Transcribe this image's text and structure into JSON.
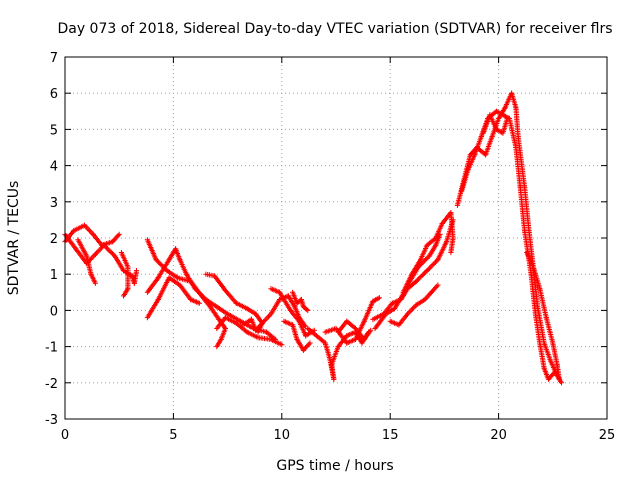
{
  "chart_data": {
    "type": "scatter",
    "title": "Day 073 of 2018, Sidereal Day-to-day VTEC variation (SDTVAR) for receiver flrs",
    "xlabel": "GPS time / hours",
    "ylabel": "SDTVAR / TECUs",
    "xlim": [
      0,
      25
    ],
    "ylim": [
      -3,
      7
    ],
    "xticks": [
      0,
      5,
      10,
      15,
      20,
      25
    ],
    "yticks": [
      -3,
      -2,
      -1,
      0,
      1,
      2,
      3,
      4,
      5,
      6,
      7
    ],
    "grid": true,
    "marker": "+",
    "series": [
      {
        "name": "SDTVAR",
        "color": "#ff0000",
        "trace_bands": [
          [
            [
              0.0,
              1.9
            ],
            [
              0.4,
              2.2
            ],
            [
              0.9,
              2.35
            ],
            [
              1.3,
              2.1
            ],
            [
              1.7,
              1.8
            ],
            [
              2.2,
              1.9
            ],
            [
              2.5,
              2.1
            ]
          ],
          [
            [
              0.0,
              2.1
            ],
            [
              0.5,
              1.7
            ],
            [
              1.0,
              1.3
            ],
            [
              1.4,
              1.55
            ],
            [
              1.8,
              1.8
            ],
            [
              2.3,
              1.5
            ],
            [
              2.7,
              1.1
            ],
            [
              3.1,
              0.95
            ],
            [
              3.2,
              0.75
            ],
            [
              3.3,
              1.1
            ]
          ],
          [
            [
              0.6,
              1.95
            ],
            [
              1.0,
              1.5
            ],
            [
              1.2,
              1.0
            ],
            [
              1.4,
              0.75
            ]
          ],
          [
            [
              2.6,
              1.6
            ],
            [
              2.9,
              1.2
            ],
            [
              2.9,
              0.6
            ],
            [
              2.7,
              0.4
            ]
          ],
          [
            [
              3.8,
              1.95
            ],
            [
              4.2,
              1.4
            ],
            [
              4.7,
              1.1
            ],
            [
              5.2,
              0.9
            ],
            [
              5.8,
              0.8
            ],
            [
              6.3,
              0.4
            ],
            [
              6.7,
              0.1
            ],
            [
              7.1,
              -0.25
            ],
            [
              7.4,
              -0.5
            ],
            [
              7.2,
              -0.8
            ],
            [
              7.0,
              -1.0
            ]
          ],
          [
            [
              3.8,
              0.5
            ],
            [
              4.3,
              0.9
            ],
            [
              4.8,
              1.4
            ],
            [
              5.1,
              1.7
            ],
            [
              5.3,
              1.4
            ],
            [
              5.6,
              1.0
            ],
            [
              6.0,
              0.6
            ],
            [
              6.5,
              0.3
            ],
            [
              7.0,
              0.1
            ],
            [
              7.5,
              -0.1
            ],
            [
              8.1,
              -0.3
            ],
            [
              8.7,
              -0.5
            ],
            [
              9.3,
              -0.6
            ],
            [
              9.7,
              -0.8
            ]
          ],
          [
            [
              3.8,
              -0.2
            ],
            [
              4.3,
              0.3
            ],
            [
              4.8,
              0.9
            ],
            [
              5.3,
              0.7
            ],
            [
              5.8,
              0.3
            ],
            [
              6.2,
              0.2
            ]
          ],
          [
            [
              6.5,
              1.0
            ],
            [
              6.9,
              0.95
            ],
            [
              7.4,
              0.55
            ],
            [
              7.9,
              0.2
            ],
            [
              8.4,
              0.05
            ],
            [
              8.8,
              -0.1
            ],
            [
              9.1,
              -0.35
            ],
            [
              8.9,
              -0.6
            ]
          ],
          [
            [
              7.0,
              -0.5
            ],
            [
              7.4,
              -0.2
            ],
            [
              7.9,
              -0.35
            ],
            [
              8.4,
              -0.6
            ],
            [
              8.9,
              -0.75
            ],
            [
              9.5,
              -0.8
            ],
            [
              10.0,
              -0.95
            ]
          ],
          [
            [
              8.2,
              -0.4
            ],
            [
              8.6,
              -0.25
            ],
            [
              8.8,
              -0.55
            ],
            [
              9.1,
              -0.35
            ],
            [
              9.5,
              -0.1
            ],
            [
              9.9,
              0.3
            ],
            [
              10.3,
              0.4
            ],
            [
              10.6,
              0.1
            ],
            [
              10.8,
              -0.2
            ],
            [
              11.1,
              -0.45
            ]
          ],
          [
            [
              9.5,
              0.6
            ],
            [
              9.9,
              0.5
            ],
            [
              10.4,
              0.0
            ],
            [
              10.8,
              -0.3
            ],
            [
              11.1,
              -0.7
            ],
            [
              11.5,
              -0.55
            ]
          ],
          [
            [
              10.1,
              -0.3
            ],
            [
              10.5,
              -0.4
            ],
            [
              10.7,
              -0.8
            ],
            [
              11.0,
              -1.1
            ],
            [
              11.3,
              -0.9
            ]
          ],
          [
            [
              10.5,
              0.5
            ],
            [
              10.7,
              0.2
            ],
            [
              10.9,
              0.3
            ],
            [
              11.0,
              0.1
            ],
            [
              11.2,
              0.0
            ]
          ],
          [
            [
              11.2,
              -0.5
            ],
            [
              11.6,
              -0.7
            ],
            [
              12.0,
              -0.9
            ],
            [
              12.2,
              -1.3
            ],
            [
              12.4,
              -1.9
            ],
            [
              12.3,
              -1.5
            ],
            [
              12.6,
              -1.0
            ],
            [
              13.0,
              -0.7
            ],
            [
              13.4,
              -0.6
            ],
            [
              13.7,
              -0.9
            ],
            [
              14.0,
              -0.6
            ]
          ],
          [
            [
              12.0,
              -0.6
            ],
            [
              12.5,
              -0.5
            ],
            [
              13.0,
              -0.9
            ],
            [
              13.4,
              -0.8
            ],
            [
              13.8,
              -0.3
            ],
            [
              14.2,
              0.25
            ],
            [
              14.5,
              0.35
            ]
          ],
          [
            [
              12.6,
              -0.6
            ],
            [
              13.0,
              -0.3
            ],
            [
              13.4,
              -0.5
            ],
            [
              13.8,
              -0.8
            ],
            [
              14.1,
              -0.55
            ]
          ],
          [
            [
              14.2,
              -0.25
            ],
            [
              14.7,
              -0.1
            ],
            [
              15.1,
              0.2
            ],
            [
              15.5,
              0.3
            ],
            [
              15.8,
              0.6
            ],
            [
              16.2,
              0.8
            ],
            [
              16.7,
              1.1
            ],
            [
              17.2,
              1.4
            ],
            [
              17.6,
              1.9
            ],
            [
              17.9,
              2.5
            ]
          ],
          [
            [
              14.3,
              -0.5
            ],
            [
              14.8,
              -0.1
            ],
            [
              15.2,
              0.05
            ],
            [
              15.6,
              0.45
            ],
            [
              15.9,
              0.8
            ],
            [
              16.3,
              1.2
            ],
            [
              16.8,
              1.5
            ],
            [
              17.1,
              1.8
            ],
            [
              17.3,
              2.1
            ]
          ],
          [
            [
              15.0,
              -0.3
            ],
            [
              15.4,
              -0.4
            ],
            [
              15.8,
              -0.1
            ],
            [
              16.2,
              0.15
            ],
            [
              16.6,
              0.3
            ],
            [
              16.9,
              0.5
            ],
            [
              17.2,
              0.7
            ]
          ],
          [
            [
              15.6,
              0.5
            ],
            [
              16.0,
              1.0
            ],
            [
              16.4,
              1.4
            ],
            [
              16.7,
              1.8
            ],
            [
              17.1,
              2.0
            ],
            [
              17.4,
              2.4
            ],
            [
              17.8,
              2.7
            ],
            [
              17.9,
              2.0
            ],
            [
              17.8,
              1.6
            ]
          ],
          [
            [
              18.1,
              2.9
            ],
            [
              18.4,
              3.6
            ],
            [
              18.7,
              4.3
            ],
            [
              19.0,
              4.5
            ],
            [
              19.4,
              4.3
            ],
            [
              19.7,
              4.8
            ],
            [
              20.0,
              5.3
            ],
            [
              20.3,
              5.6
            ],
            [
              20.6,
              6.0
            ],
            [
              20.8,
              5.6
            ],
            [
              20.9,
              4.8
            ],
            [
              21.2,
              3.4
            ],
            [
              21.4,
              2.2
            ],
            [
              21.6,
              1.2
            ],
            [
              21.8,
              0.1
            ],
            [
              22.1,
              -0.9
            ],
            [
              22.4,
              -1.4
            ],
            [
              22.7,
              -1.8
            ],
            [
              22.9,
              -2.0
            ]
          ],
          [
            [
              18.3,
              3.3
            ],
            [
              18.6,
              3.9
            ],
            [
              18.9,
              4.3
            ],
            [
              19.2,
              4.8
            ],
            [
              19.5,
              5.3
            ],
            [
              19.9,
              5.5
            ],
            [
              20.2,
              5.4
            ],
            [
              20.5,
              5.3
            ],
            [
              20.8,
              4.5
            ],
            [
              21.0,
              3.4
            ],
            [
              21.2,
              2.2
            ],
            [
              21.5,
              1.0
            ],
            [
              21.7,
              -0.1
            ],
            [
              21.9,
              -0.9
            ],
            [
              22.1,
              -1.6
            ],
            [
              22.3,
              -1.9
            ],
            [
              22.6,
              -1.7
            ]
          ],
          [
            [
              19.3,
              4.9
            ],
            [
              19.6,
              5.4
            ],
            [
              19.9,
              5.0
            ],
            [
              20.2,
              4.9
            ],
            [
              20.4,
              5.3
            ]
          ],
          [
            [
              21.3,
              1.6
            ],
            [
              21.6,
              1.2
            ],
            [
              21.9,
              0.6
            ],
            [
              22.2,
              -0.2
            ],
            [
              22.5,
              -0.9
            ],
            [
              22.7,
              -1.5
            ],
            [
              22.8,
              -1.9
            ]
          ]
        ]
      }
    ]
  }
}
